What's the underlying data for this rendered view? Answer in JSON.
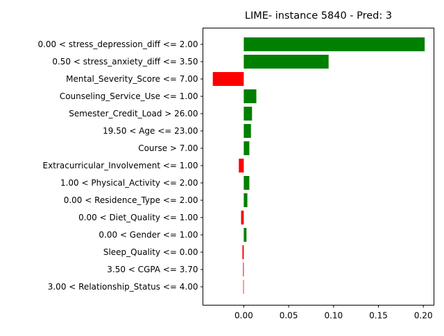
{
  "chart_data": {
    "type": "bar",
    "orientation": "horizontal",
    "title": "LIME- instance 5840 - Pred: 3",
    "xlabel": "",
    "ylabel": "",
    "xlim": [
      -0.0455,
      0.2118
    ],
    "xticks": [
      0.0,
      0.05,
      0.1,
      0.15,
      0.2
    ],
    "xtick_labels": [
      "0.00",
      "0.05",
      "0.10",
      "0.15",
      "0.20"
    ],
    "grid": false,
    "legend": "none",
    "positive_color": "#008000",
    "negative_color": "#ff0000",
    "categories": [
      "0.00 < stress_depression_diff <= 2.00",
      "0.50 < stress_anxiety_diff <= 3.50",
      "Mental_Severity_Score <= 7.00",
      "Counseling_Service_Use <= 1.00",
      "Semester_Credit_Load > 26.00",
      "19.50 < Age <= 23.00",
      "Course > 7.00",
      "Extracurricular_Involvement <= 1.00",
      "1.00 < Physical_Activity <= 2.00",
      "0.00 < Residence_Type <= 2.00",
      "0.00 < Diet_Quality <= 1.00",
      "0.00 < Gender <= 1.00",
      "Sleep_Quality <= 0.00",
      "3.50 < CGPA <= 3.70",
      "3.00 < Relationship_Status <= 4.00"
    ],
    "values": [
      0.2015,
      0.0945,
      -0.0345,
      0.014,
      0.0092,
      0.008,
      0.0062,
      -0.0055,
      0.0062,
      0.004,
      -0.003,
      0.003,
      -0.0015,
      -0.0008,
      -0.0006
    ]
  }
}
